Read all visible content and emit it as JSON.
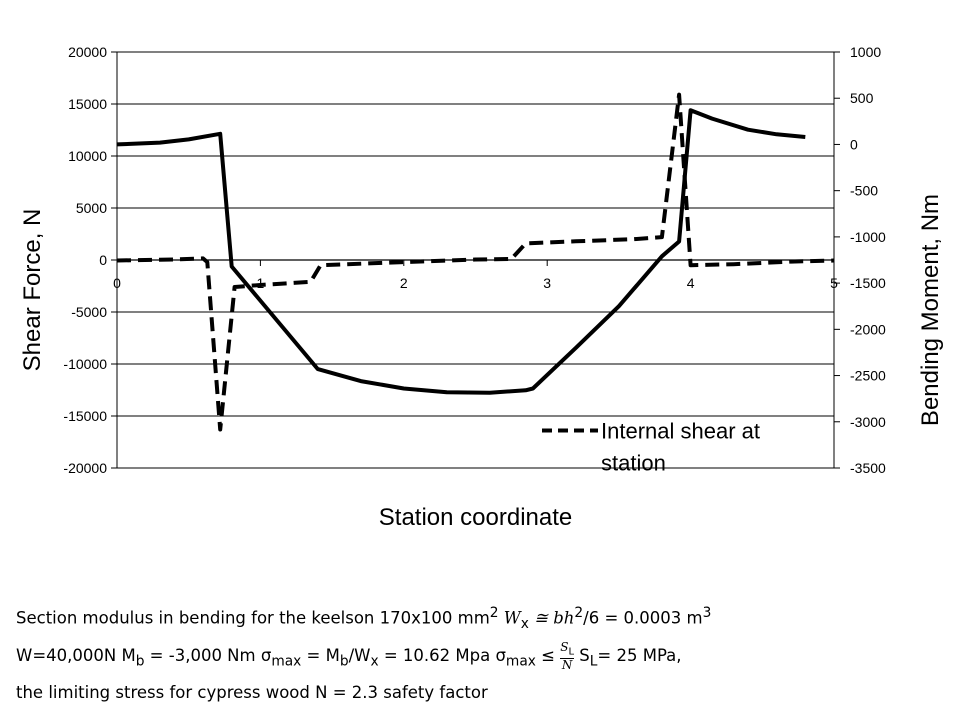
{
  "chart_data": {
    "type": "line",
    "xlabel": "Station  coordinate",
    "ylabel_left": "Shear Force, N",
    "ylabel_right": "Bending Moment, Nm",
    "xlim": [
      0,
      5
    ],
    "ylim_left": [
      -20000,
      20000
    ],
    "ylim_right": [
      -3500,
      1000
    ],
    "x_ticks": [
      "0",
      "1",
      "2",
      "3",
      "4",
      "5"
    ],
    "y_left_ticks": [
      "20000",
      "15000",
      "10000",
      "5000",
      "0",
      "-5000",
      "-10000",
      "-15000",
      "-20000"
    ],
    "y_right_ticks": [
      "1000",
      "500",
      "0",
      "-500",
      "-1000",
      "-1500",
      "-2000",
      "-2500",
      "-3000",
      "-3500"
    ],
    "grid": "horizontal",
    "legend_position": "bottom-right inside plot",
    "series": [
      {
        "axis": "right",
        "style": "solid",
        "color": "#000000",
        "points": [
          [
            0,
            0
          ],
          [
            0.3,
            20
          ],
          [
            0.5,
            55
          ],
          [
            0.7,
            110
          ],
          [
            0.72,
            115
          ],
          [
            0.8,
            -1320
          ],
          [
            1.4,
            -2430
          ],
          [
            1.7,
            -2560
          ],
          [
            2.0,
            -2640
          ],
          [
            2.3,
            -2680
          ],
          [
            2.6,
            -2685
          ],
          [
            2.85,
            -2660
          ],
          [
            2.9,
            -2640
          ],
          [
            3.2,
            -2200
          ],
          [
            3.5,
            -1750
          ],
          [
            3.8,
            -1210
          ],
          [
            3.92,
            -1050
          ],
          [
            4.0,
            370
          ],
          [
            4.15,
            280
          ],
          [
            4.4,
            160
          ],
          [
            4.6,
            110
          ],
          [
            4.8,
            80
          ]
        ]
      },
      {
        "name": "Internal shear at station",
        "axis": "left",
        "style": "dashed",
        "color": "#000000",
        "points": [
          [
            0,
            -50
          ],
          [
            0.4,
            50
          ],
          [
            0.6,
            150
          ],
          [
            0.63,
            -200
          ],
          [
            0.72,
            -16300
          ],
          [
            0.82,
            -2600
          ],
          [
            1.0,
            -2400
          ],
          [
            1.35,
            -2100
          ],
          [
            1.42,
            -500
          ],
          [
            2.0,
            -200
          ],
          [
            2.5,
            50
          ],
          [
            2.75,
            100
          ],
          [
            2.85,
            1600
          ],
          [
            3.2,
            1800
          ],
          [
            3.6,
            2000
          ],
          [
            3.8,
            2200
          ],
          [
            3.92,
            15900
          ],
          [
            4.0,
            -500
          ],
          [
            4.3,
            -400
          ],
          [
            4.7,
            -150
          ],
          [
            5.0,
            -50
          ]
        ]
      }
    ]
  },
  "caption": {
    "line1": {
      "a": "Section modulus in bending for the keelson  170x100 mm",
      "a_sup": "2",
      "b": "  W",
      "b_sub": "x",
      "c": " ≅ bh",
      "c_sup": "2",
      "d": "/6 = 0.0003 m",
      "d_sup": "3"
    },
    "line2": {
      "a": "W=40,000N   M",
      "a_sub": "b",
      "b": " = -3,000 Nm    σ",
      "b_sub": "max",
      "c": " = M",
      "c_sub": "b",
      "d": "/W",
      "d_sub": "x",
      "e": " = 10.62 Mpa   σ",
      "e_sub": "max",
      "f": " ≤ ",
      "frac_num": "S",
      "frac_num_sub": "L",
      "frac_den": "N",
      "g": "  S",
      "g_sub": "L",
      "h": "= 25 MPa,"
    },
    "line3": {
      "a": "the limiting stress for cypress wood  N = 2.3 safety factor"
    }
  }
}
